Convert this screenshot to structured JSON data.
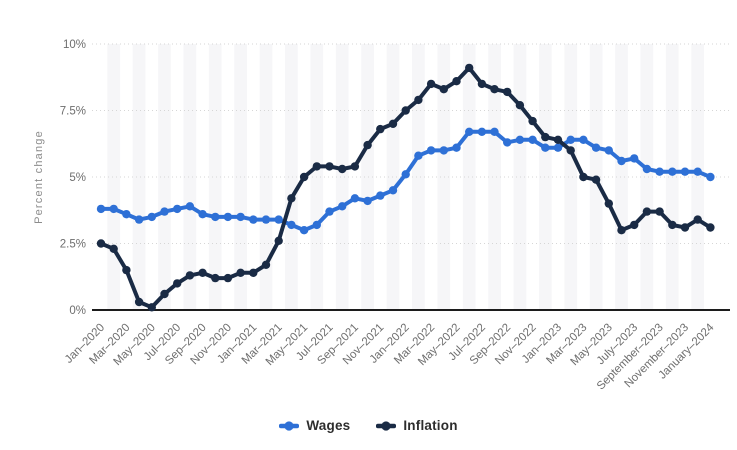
{
  "page": {
    "background": "#ffffff"
  },
  "chart_data": {
    "type": "line",
    "ylabel": "Percent change",
    "ylim": [
      0,
      10
    ],
    "y_ticks": [
      "0%",
      "2.5%",
      "5%",
      "7.5%",
      "10%"
    ],
    "y_tick_values": [
      0,
      2.5,
      5,
      7.5,
      10
    ],
    "grid": "horizontal-dotted",
    "legend_position": "bottom-center",
    "x_frequency": "monthly",
    "x_tick_labels": [
      "Jan–2020",
      "Mar–2020",
      "May–2020",
      "Jul–2020",
      "Sep–2020",
      "Nov–2020",
      "Jan–2021",
      "Mar–2021",
      "May–2021",
      "Jul–2021",
      "Sep–2021",
      "Nov–2021",
      "Jan–2022",
      "Mar–2022",
      "May–2022",
      "Jul–2022",
      "Sep–2022",
      "Nov–2022",
      "Jan–2023",
      "Mar–2023",
      "May–2023",
      "July–2023",
      "September–2023",
      "November–2023",
      "January–2024"
    ],
    "months": [
      "Jan 2020",
      "Feb 2020",
      "Mar 2020",
      "Apr 2020",
      "May 2020",
      "Jun 2020",
      "Jul 2020",
      "Aug 2020",
      "Sep 2020",
      "Oct 2020",
      "Nov 2020",
      "Dec 2020",
      "Jan 2021",
      "Feb 2021",
      "Mar 2021",
      "Apr 2021",
      "May 2021",
      "Jun 2021",
      "Jul 2021",
      "Aug 2021",
      "Sep 2021",
      "Oct 2021",
      "Nov 2021",
      "Dec 2021",
      "Jan 2022",
      "Feb 2022",
      "Mar 2022",
      "Apr 2022",
      "May 2022",
      "Jun 2022",
      "Jul 2022",
      "Aug 2022",
      "Sep 2022",
      "Oct 2022",
      "Nov 2022",
      "Dec 2022",
      "Jan 2023",
      "Feb 2023",
      "Mar 2023",
      "Apr 2023",
      "May 2023",
      "Jun 2023",
      "Jul 2023",
      "Aug 2023",
      "Sep 2023",
      "Oct 2023",
      "Nov 2023",
      "Dec 2023",
      "Jan 2024"
    ],
    "series": [
      {
        "name": "Wages",
        "color": "#2e70d6",
        "values": [
          3.8,
          3.8,
          3.6,
          3.4,
          3.5,
          3.7,
          3.8,
          3.9,
          3.6,
          3.5,
          3.5,
          3.5,
          3.4,
          3.4,
          3.4,
          3.2,
          3.0,
          3.2,
          3.7,
          3.9,
          4.2,
          4.1,
          4.3,
          4.5,
          5.1,
          5.8,
          6.0,
          6.0,
          6.1,
          6.7,
          6.7,
          6.7,
          6.3,
          6.4,
          6.4,
          6.1,
          6.1,
          6.4,
          6.4,
          6.1,
          6.0,
          5.6,
          5.7,
          5.3,
          5.2,
          5.2,
          5.2,
          5.2,
          5.0
        ]
      },
      {
        "name": "Inflation",
        "color": "#1a2b45",
        "values": [
          2.5,
          2.3,
          1.5,
          0.3,
          0.1,
          0.6,
          1.0,
          1.3,
          1.4,
          1.2,
          1.2,
          1.4,
          1.4,
          1.7,
          2.6,
          4.2,
          5.0,
          5.4,
          5.4,
          5.3,
          5.4,
          6.2,
          6.8,
          7.0,
          7.5,
          7.9,
          8.5,
          8.3,
          8.6,
          9.1,
          8.5,
          8.3,
          8.2,
          7.7,
          7.1,
          6.5,
          6.4,
          6.0,
          5.0,
          4.9,
          4.0,
          3.0,
          3.2,
          3.7,
          3.7,
          3.2,
          3.1,
          3.4,
          3.1
        ]
      }
    ],
    "style": {
      "grid_color": "#d6d6d6",
      "axis_color": "#1c1c1c",
      "tick_label_color": "#6e6e6e",
      "ylabel_color": "#8c8c8c",
      "stripe_color": "#f6f6f8"
    }
  }
}
